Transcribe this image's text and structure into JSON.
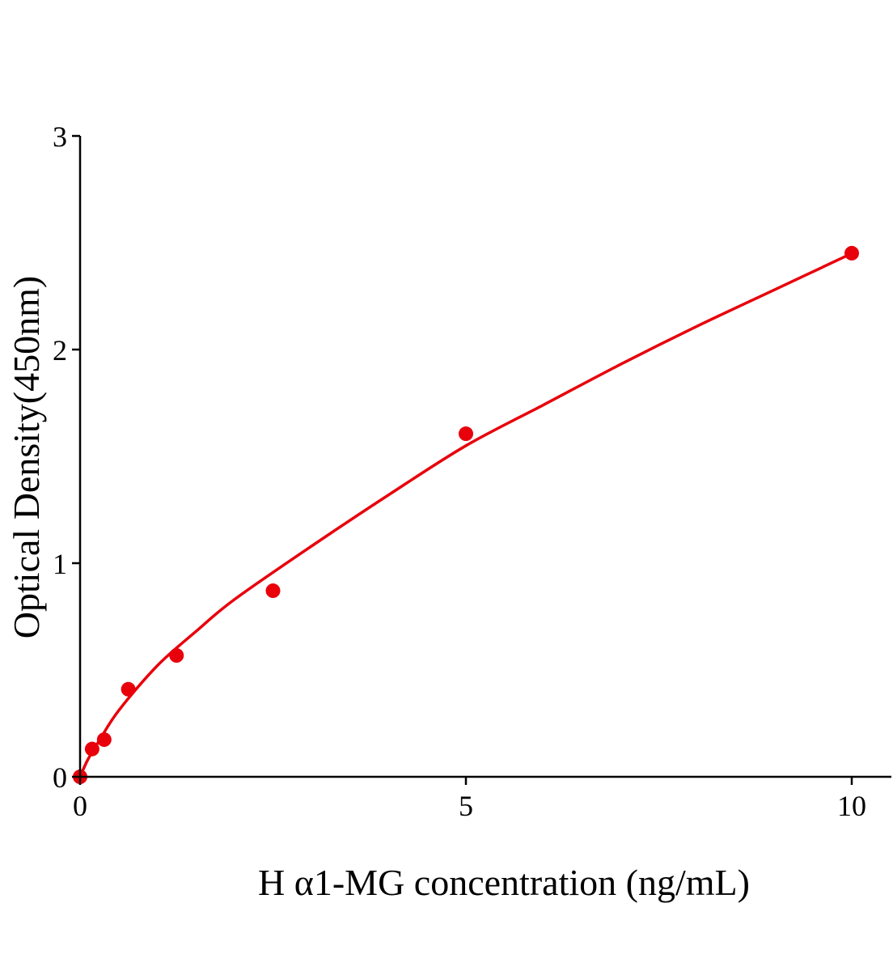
{
  "chart_data": {
    "type": "scatter",
    "title": "",
    "xlabel": "H α1-MG concentration (ng/mL)",
    "ylabel": "Optical Density(450nm)",
    "xlim": [
      0,
      10.5
    ],
    "ylim": [
      0,
      3
    ],
    "xticks": [
      "0",
      "5",
      "10"
    ],
    "xtick_values": [
      0,
      5,
      10
    ],
    "yticks": [
      "0",
      "1",
      "2",
      "3"
    ],
    "ytick_values": [
      0,
      1,
      2,
      3
    ],
    "grid": false,
    "color": "#e8000b",
    "points": [
      {
        "x": 0,
        "y": 0
      },
      {
        "x": 0.156,
        "y": 0.13
      },
      {
        "x": 0.3125,
        "y": 0.174
      },
      {
        "x": 0.625,
        "y": 0.41
      },
      {
        "x": 1.25,
        "y": 0.568
      },
      {
        "x": 2.5,
        "y": 0.871
      },
      {
        "x": 5,
        "y": 1.606
      },
      {
        "x": 10,
        "y": 2.451
      }
    ],
    "fit_curve": [
      [
        0,
        0
      ],
      [
        0.1,
        0.08
      ],
      [
        0.25,
        0.17
      ],
      [
        0.5,
        0.31
      ],
      [
        1,
        0.52
      ],
      [
        1.5,
        0.68
      ],
      [
        2,
        0.83
      ],
      [
        3,
        1.08
      ],
      [
        4,
        1.32
      ],
      [
        5,
        1.55
      ],
      [
        6,
        1.74
      ],
      [
        7,
        1.93
      ],
      [
        8,
        2.11
      ],
      [
        9,
        2.28
      ],
      [
        10,
        2.45
      ]
    ]
  }
}
